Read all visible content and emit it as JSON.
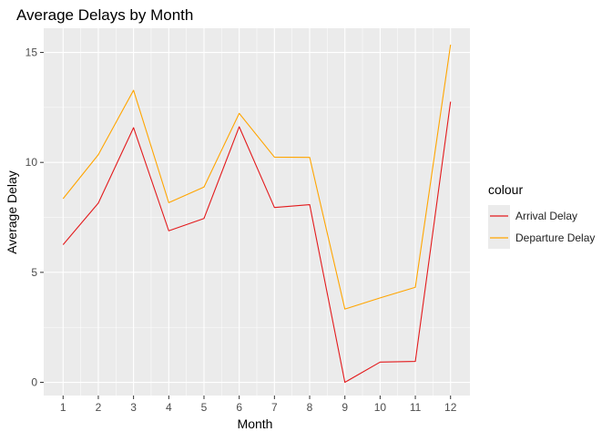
{
  "chart_data": {
    "type": "line",
    "title": "Average Delays by Month",
    "xlabel": "Month",
    "ylabel": "Average Delay",
    "x": [
      1,
      2,
      3,
      4,
      5,
      6,
      7,
      8,
      9,
      10,
      11,
      12
    ],
    "x_ticks": [
      "1",
      "2",
      "3",
      "4",
      "5",
      "6",
      "7",
      "8",
      "9",
      "10",
      "11",
      "12"
    ],
    "y_ticks": [
      "0",
      "5",
      "10",
      "15"
    ],
    "xlim": [
      0.45,
      12.55
    ],
    "ylim": [
      -0.6,
      16.1
    ],
    "grid": true,
    "legend": {
      "title": "colour",
      "position": "right"
    },
    "series": [
      {
        "name": "Arrival Delay",
        "color": "#e31a1c",
        "values": [
          6.26,
          8.15,
          11.58,
          6.89,
          7.45,
          11.62,
          7.95,
          8.08,
          0.0,
          0.92,
          0.95,
          12.76
        ]
      },
      {
        "name": "Departure Delay",
        "color": "#ffa500",
        "values": [
          8.35,
          10.35,
          13.28,
          8.17,
          8.88,
          12.23,
          10.24,
          10.23,
          3.33,
          3.84,
          4.32,
          15.35
        ]
      }
    ]
  }
}
